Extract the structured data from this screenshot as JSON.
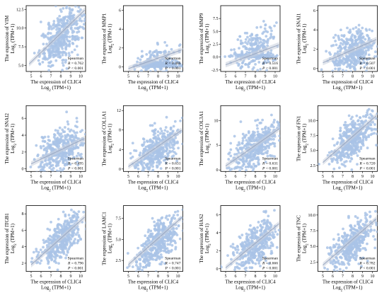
{
  "figure": {
    "point_color": "#a9c3e6",
    "fit_color": "#9aa8c2",
    "band_color": "#c8d0dc",
    "stat_title": "Spearman",
    "r_prefix": "R",
    "p_prefix": "P",
    "xlabel_line1": "The expression of CLIC4",
    "xlabel_line2": "Log2 (TPM+1)",
    "ylabel_line2": "Log2 (TPM+1)"
  },
  "chart_data": [
    {
      "type": "scatter",
      "gene": "VIM",
      "ylabel": "The expression of VIM",
      "ylabel_unit": "Log2 (TPM+1)",
      "xlabel": "The expression of CLIC4",
      "xlabel_unit": "Log2 (TPM+1)",
      "xlim": [
        4.5,
        10.5
      ],
      "ylim": [
        4.2,
        13
      ],
      "xticks": [
        5,
        6,
        7,
        8,
        9,
        10
      ],
      "yticks": [
        5.0,
        7.5,
        10.0,
        12.5
      ],
      "r": "0.762",
      "p": "< 0.001",
      "fit": {
        "x0": 4.8,
        "y0": 5.2,
        "x1": 10.4,
        "y1": 12.4
      },
      "cloud": {
        "cx": 8.1,
        "cy": 8.9,
        "sx": 1.1,
        "sy": 1.6,
        "n": 420
      }
    },
    {
      "type": "scatter",
      "gene": "MMP1",
      "ylabel": "The expression of MMP1",
      "ylabel_unit": "Log2 (TPM+1)",
      "xlabel": "The expression of CLIC4",
      "xlabel_unit": "Log2 (TPM+1)",
      "xlim": [
        4.5,
        10.5
      ],
      "ylim": [
        -0.5,
        6.5
      ],
      "xticks": [
        5,
        6,
        7,
        8,
        9,
        10
      ],
      "yticks": [
        0,
        2,
        4,
        6
      ],
      "r": "0.406",
      "p": "< 0.001",
      "fit": {
        "x0": 5,
        "y0": -0.2,
        "x1": 10.4,
        "y1": 1.8
      },
      "cloud": {
        "cx": 8.0,
        "cy": 0.6,
        "sx": 1.1,
        "sy": 0.9,
        "n": 380,
        "floor": 0.0,
        "floor_frac": 0.55
      }
    },
    {
      "type": "scatter",
      "gene": "MMP9",
      "ylabel": "The expression of MMP9",
      "ylabel_unit": "Log2 (TPM+1)",
      "xlabel": "The expression of CLIC4",
      "xlabel_unit": "Log2 (TPM+1)",
      "xlim": [
        4.5,
        10.5
      ],
      "ylim": [
        -2.8,
        10
      ],
      "xticks": [
        5,
        6,
        7,
        8,
        9,
        10
      ],
      "yticks": [
        -2.5,
        0,
        2.5,
        5,
        7.5
      ],
      "r": "0.516",
      "p": "< 0.001",
      "fit": {
        "x0": 5,
        "y0": -1.5,
        "x1": 10.4,
        "y1": 2.4
      },
      "cloud": {
        "cx": 8.0,
        "cy": 1.6,
        "sx": 1.1,
        "sy": 2.0,
        "n": 380,
        "floor": 0.0,
        "floor_frac": 0.45
      }
    },
    {
      "type": "scatter",
      "gene": "SNAI1",
      "ylabel": "The expression of SNAI1",
      "ylabel_unit": "Log2 (TPM+1)",
      "xlabel": "The expression of CLIC4",
      "xlabel_unit": "Log2 (TPM+1)",
      "xlim": [
        4.5,
        10.5
      ],
      "ylim": [
        -0.3,
        6.5
      ],
      "xticks": [
        5,
        6,
        7,
        8,
        9,
        10
      ],
      "yticks": [
        0,
        2,
        4,
        6
      ],
      "r": "0.507",
      "p": "< 0.001",
      "fit": {
        "x0": 5,
        "y0": 0.6,
        "x1": 10.4,
        "y1": 3.0
      },
      "cloud": {
        "cx": 8.0,
        "cy": 1.8,
        "sx": 1.1,
        "sy": 1.1,
        "n": 400
      }
    },
    {
      "type": "scatter",
      "gene": "SNAI2",
      "ylabel": "The expression of SNAI2",
      "ylabel_unit": "Log2 (TPM+1)",
      "xlabel": "The expression of CLIC4",
      "xlabel_unit": "Log2 (TPM+1)",
      "xlim": [
        4.5,
        10.5
      ],
      "ylim": [
        -0.3,
        7.5
      ],
      "xticks": [
        5,
        6,
        7,
        8,
        9,
        10
      ],
      "yticks": [
        0,
        2,
        4,
        6
      ],
      "r": "0.495",
      "p": "< 0.001",
      "fit": {
        "x0": 5,
        "y0": 0.6,
        "x1": 10.4,
        "y1": 3.6
      },
      "cloud": {
        "cx": 8.0,
        "cy": 2.1,
        "sx": 1.1,
        "sy": 1.3,
        "n": 400
      }
    },
    {
      "type": "scatter",
      "gene": "COL1A1",
      "ylabel": "The expression of COL1A1",
      "ylabel_unit": "Log2 (TPM+1)",
      "xlabel": "The expression of CLIC4",
      "xlabel_unit": "Log2 (TPM+1)",
      "xlim": [
        4.5,
        10.5
      ],
      "ylim": [
        -0.5,
        13
      ],
      "xticks": [
        5,
        6,
        7,
        8,
        9,
        10
      ],
      "yticks": [
        0,
        4,
        8,
        12
      ],
      "r": "0.631",
      "p": "< 0.001",
      "fit": {
        "x0": 5,
        "y0": 0.5,
        "x1": 10.4,
        "y1": 8.0
      },
      "cloud": {
        "cx": 8.0,
        "cy": 4.2,
        "sx": 1.1,
        "sy": 2.0,
        "n": 400
      }
    },
    {
      "type": "scatter",
      "gene": "COL3A1",
      "ylabel": "The expression of COL3A1",
      "ylabel_unit": "Log2 (TPM+1)",
      "xlabel": "The expression of CLIC4",
      "xlabel_unit": "Log2 (TPM+1)",
      "xlim": [
        4.5,
        10.5
      ],
      "ylim": [
        -0.3,
        13
      ],
      "xticks": [
        5,
        6,
        7,
        8,
        9,
        10
      ],
      "yticks": [
        0,
        5,
        10
      ],
      "r": "0.631",
      "p": "< 0.001",
      "fit": {
        "x0": 5,
        "y0": 0.8,
        "x1": 10.4,
        "y1": 8.3
      },
      "cloud": {
        "cx": 8.0,
        "cy": 4.6,
        "sx": 1.1,
        "sy": 2.1,
        "n": 400
      }
    },
    {
      "type": "scatter",
      "gene": "FN1",
      "ylabel": "The expression of FN1",
      "ylabel_unit": "Log2 (TPM+1)",
      "xlabel": "The expression of CLIC4",
      "xlabel_unit": "Log2 (TPM+1)",
      "xlim": [
        4.5,
        10.5
      ],
      "ylim": [
        1.5,
        12.5
      ],
      "xticks": [
        5,
        6,
        7,
        8,
        9,
        10
      ],
      "yticks": [
        2.5,
        5.0,
        7.5,
        10.0
      ],
      "r": "0.720",
      "p": "< 0.001",
      "fit": {
        "x0": 5,
        "y0": 3.0,
        "x1": 10.4,
        "y1": 10.8
      },
      "cloud": {
        "cx": 8.0,
        "cy": 6.8,
        "sx": 1.1,
        "sy": 1.6,
        "n": 420
      }
    },
    {
      "type": "scatter",
      "gene": "ITGB1",
      "ylabel": "The expression of ITGB1",
      "ylabel_unit": "Log2 (TPM+1)",
      "xlabel": "The expression of CLIC4",
      "xlabel_unit": "Log2 (TPM+1)",
      "xlim": [
        4.5,
        10.5
      ],
      "ylim": [
        1,
        9
      ],
      "xticks": [
        5,
        6,
        7,
        8,
        9,
        10
      ],
      "yticks": [
        2,
        4,
        6,
        8
      ],
      "r": "0.796",
      "p": "< 0.001",
      "fit": {
        "x0": 5,
        "y0": 1.8,
        "x1": 10.4,
        "y1": 7.6
      },
      "cloud": {
        "cx": 8.0,
        "cy": 4.9,
        "sx": 1.1,
        "sy": 1.1,
        "n": 420
      }
    },
    {
      "type": "scatter",
      "gene": "LAMC1",
      "ylabel": "The expression of LAMC1",
      "ylabel_unit": "Log2 (TPM+1)",
      "xlabel": "The expression of CLIC4",
      "xlabel_unit": "Log2 (TPM+1)",
      "xlim": [
        4.5,
        10.5
      ],
      "ylim": [
        1.2,
        9
      ],
      "xticks": [
        5,
        6,
        7,
        8,
        9,
        10
      ],
      "yticks": [
        2.5,
        5.0,
        7.5
      ],
      "r": "0.747",
      "p": "< 0.001",
      "fit": {
        "x0": 5,
        "y0": 2.0,
        "x1": 10.4,
        "y1": 7.6
      },
      "cloud": {
        "cx": 8.0,
        "cy": 4.6,
        "sx": 1.1,
        "sy": 1.2,
        "n": 420
      }
    },
    {
      "type": "scatter",
      "gene": "HAS2",
      "ylabel": "The expression of HAS2",
      "ylabel_unit": "Log2 (TPM+1)",
      "xlabel": "The expression of CLIC4",
      "xlabel_unit": "Log2 (TPM+1)",
      "xlim": [
        4.5,
        10.5
      ],
      "ylim": [
        -0.3,
        7
      ],
      "xticks": [
        5,
        6,
        7,
        8,
        9,
        10
      ],
      "yticks": [
        0,
        2,
        4,
        6
      ],
      "r": "0.666",
      "p": "< 0.001",
      "fit": {
        "x0": 5,
        "y0": 0.1,
        "x1": 10.4,
        "y1": 5.0
      },
      "cloud": {
        "cx": 8.0,
        "cy": 2.6,
        "sx": 1.1,
        "sy": 1.2,
        "n": 400
      }
    },
    {
      "type": "scatter",
      "gene": "TNC",
      "ylabel": "The expression of TNC",
      "ylabel_unit": "Log2 (TPM+1)",
      "xlabel": "The expression of CLIC4",
      "xlabel_unit": "Log2 (TPM+1)",
      "xlim": [
        4.5,
        10.5
      ],
      "ylim": [
        1,
        11.5
      ],
      "xticks": [
        5,
        6,
        7,
        8,
        9,
        10
      ],
      "yticks": [
        2.5,
        5.0,
        7.5,
        10.0
      ],
      "r": "0.782",
      "p": "< 0.001",
      "fit": {
        "x0": 5,
        "y0": 2.0,
        "x1": 10.4,
        "y1": 9.4
      },
      "cloud": {
        "cx": 8.0,
        "cy": 5.6,
        "sx": 1.1,
        "sy": 1.5,
        "n": 420
      }
    }
  ]
}
